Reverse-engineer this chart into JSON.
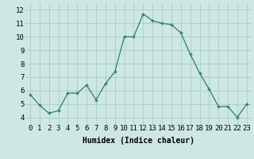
{
  "x": [
    0,
    1,
    2,
    3,
    4,
    5,
    6,
    7,
    8,
    9,
    10,
    11,
    12,
    13,
    14,
    15,
    16,
    17,
    18,
    19,
    20,
    21,
    22,
    23
  ],
  "y": [
    5.7,
    4.9,
    4.3,
    4.5,
    5.8,
    5.8,
    6.4,
    5.3,
    6.5,
    7.4,
    10.0,
    10.0,
    11.7,
    11.2,
    11.0,
    10.9,
    10.3,
    8.7,
    7.3,
    6.1,
    4.8,
    4.8,
    4.0,
    5.0
  ],
  "line_color": "#2d7d6b",
  "marker": "+",
  "bg_color": "#cde8e4",
  "grid_color": "#b0ceca",
  "xlabel": "Humidex (Indice chaleur)",
  "xlabel_fontsize": 7,
  "tick_fontsize": 6.5,
  "ylim": [
    3.5,
    12.5
  ],
  "xlim": [
    -0.5,
    23.5
  ],
  "yticks": [
    4,
    5,
    6,
    7,
    8,
    9,
    10,
    11,
    12
  ],
  "xticks": [
    0,
    1,
    2,
    3,
    4,
    5,
    6,
    7,
    8,
    9,
    10,
    11,
    12,
    13,
    14,
    15,
    16,
    17,
    18,
    19,
    20,
    21,
    22,
    23
  ]
}
